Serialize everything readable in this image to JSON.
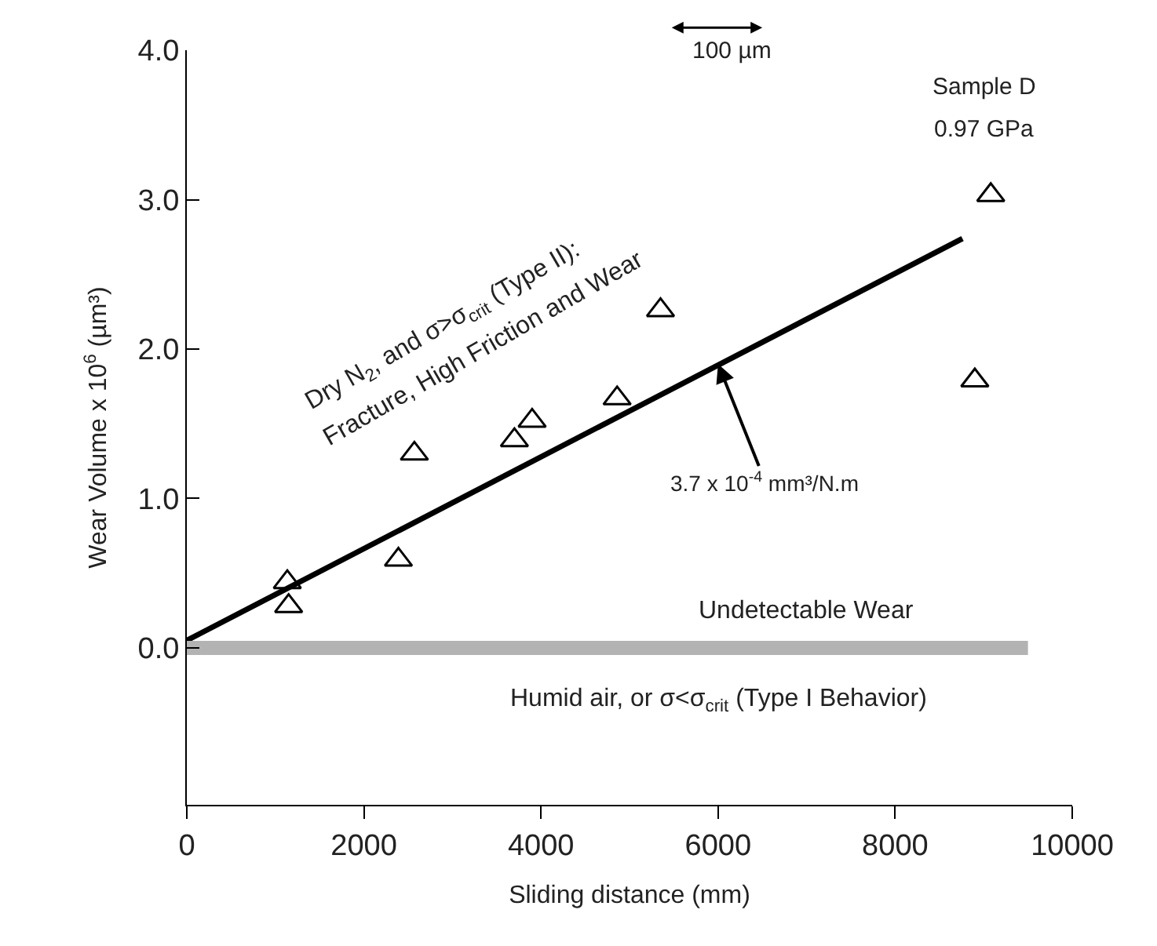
{
  "chart_data": {
    "type": "scatter",
    "xlabel": "Sliding distance (mm)",
    "ylabel": "Wear Volume x 10$^{6}$ (µm³)",
    "xlim": [
      0,
      10000
    ],
    "xticks": [
      0,
      2000,
      4000,
      6000,
      8000,
      10000
    ],
    "ylim": [
      -1.05,
      4.0
    ],
    "yticks": [
      {
        "value": 0,
        "label": "0.0"
      },
      {
        "value": 1,
        "label": "1.0"
      },
      {
        "value": 2,
        "label": "2.0"
      },
      {
        "value": 3,
        "label": "3.0"
      },
      {
        "value": 4,
        "label": "4.0"
      }
    ],
    "series": [
      {
        "marker": "triangle",
        "color": "#000000",
        "x": [
          1135,
          1150,
          2390,
          2570,
          3700,
          3900,
          4860,
          5350,
          8900,
          9080
        ],
        "values": [
          0.44,
          0.28,
          0.59,
          1.3,
          1.39,
          1.52,
          1.67,
          2.26,
          1.79,
          3.03
        ]
      },
      {
        "type": "line",
        "marker": "none",
        "color": "#000000",
        "x": [
          0,
          8760
        ],
        "values": [
          0.05,
          2.74
        ]
      },
      {
        "type": "line",
        "marker": "none",
        "color": "#b3b3b3",
        "x": [
          0,
          9500
        ],
        "values": [
          0,
          0
        ]
      }
    ],
    "annotations": [
      "Undetectable Wear",
      "Humid air, or σ<σ$_{crit}$ (Type I Behavior)",
      "Dry N$_{2}$, and σ>σ$_{crit}$ (Type II):",
      "Fracture, High Friction and Wear",
      {
        "text": "3.7 x 10$^{-4}$ mm³/N.m",
        "x": 6000,
        "y": 1.9
      },
      "Sample D",
      "0.97 GPa",
      "100 µm"
    ]
  }
}
